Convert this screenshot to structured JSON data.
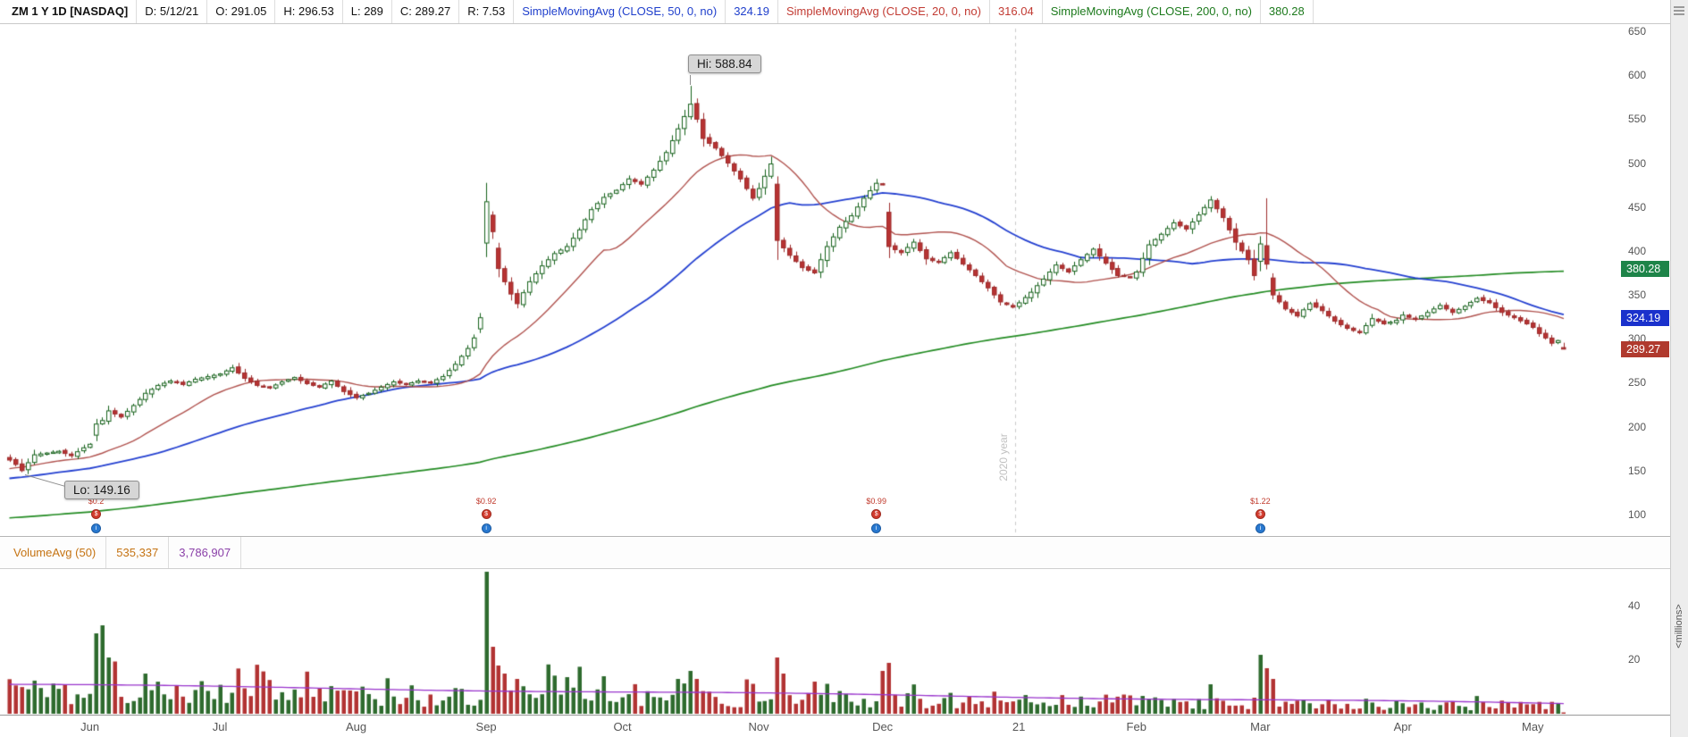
{
  "header": {
    "symbol": "ZM 1 Y 1D [NASDAQ]",
    "fields": [
      "D: 5/12/21",
      "O: 291.05",
      "H: 296.53",
      "L: 289",
      "C: 289.27",
      "R: 7.53"
    ],
    "indicators": [
      {
        "label": "SimpleMovingAvg (CLOSE, 50, 0, no)",
        "value": "324.19",
        "color": "#1f3fcc"
      },
      {
        "label": "SimpleMovingAvg (CLOSE, 20, 0, no)",
        "value": "316.04",
        "color": "#c23b33"
      },
      {
        "label": "SimpleMovingAvg (CLOSE, 200, 0, no)",
        "value": "380.28",
        "color": "#1d7a1d"
      }
    ]
  },
  "price_axis": {
    "ticks": [
      650,
      600,
      550,
      500,
      450,
      400,
      350,
      300,
      250,
      200,
      150,
      100
    ],
    "lines": [
      {
        "text": "380.28",
        "price": 380.28,
        "color": "#1e8449"
      },
      {
        "text": "324.19",
        "price": 324.19,
        "color": "#1a31cc"
      },
      {
        "text": "289.27",
        "price": 289.27,
        "color": "#b03a2e"
      }
    ]
  },
  "volume_header": {
    "label": "VolumeAvg (50)",
    "value1": "535,337",
    "value2": "3,786,907"
  },
  "volume_axis": {
    "ticks": [
      40,
      20
    ],
    "unit": "<millions>"
  },
  "annotations": {
    "hi": "Hi: 588.84",
    "lo": "Lo: 149.16",
    "year_line": "2020 year"
  },
  "events": [
    {
      "day": 14,
      "eps": "$0.2"
    },
    {
      "day": 77,
      "eps": "$0.92"
    },
    {
      "day": 140,
      "eps": "$0.99"
    },
    {
      "day": 202,
      "eps": "$1.22"
    }
  ],
  "chart_data": {
    "type": "candlestick",
    "title": "ZM 1 Y 1D [NASDAQ]",
    "symbol": "ZM",
    "timeframe": "1 Y 1D",
    "exchange": "NASDAQ",
    "last_bar": {
      "date": "5/12/21",
      "open": 291.05,
      "high": 296.53,
      "low": 289,
      "close": 289.27,
      "range": 7.53
    },
    "period_high": 588.84,
    "period_low": 149.16,
    "price_axis_range": [
      100,
      650
    ],
    "overlays": [
      {
        "name": "SimpleMovingAvg 50",
        "value": 324.19,
        "color": "#2440d0"
      },
      {
        "name": "SimpleMovingAvg 20",
        "value": 316.04,
        "color": "#b0524e"
      },
      {
        "name": "SimpleMovingAvg 200",
        "value": 380.28,
        "color": "#228b22"
      }
    ],
    "months": [
      {
        "label": "Jun",
        "day": 13
      },
      {
        "label": "Jul",
        "day": 34
      },
      {
        "label": "Aug",
        "day": 56
      },
      {
        "label": "Sep",
        "day": 77
      },
      {
        "label": "Oct",
        "day": 99
      },
      {
        "label": "Nov",
        "day": 121
      },
      {
        "label": "Dec",
        "day": 141
      },
      {
        "label": "21",
        "day": 163
      },
      {
        "label": "Feb",
        "day": 182
      },
      {
        "label": "Mar",
        "day": 202
      },
      {
        "label": "Apr",
        "day": 225
      },
      {
        "label": "May",
        "day": 246
      }
    ],
    "close_anchors": [
      [
        0,
        163
      ],
      [
        1,
        158
      ],
      [
        2,
        151
      ],
      [
        3,
        160
      ],
      [
        4,
        169
      ],
      [
        6,
        171
      ],
      [
        8,
        173
      ],
      [
        10,
        168
      ],
      [
        12,
        177
      ],
      [
        13,
        181
      ],
      [
        14,
        204
      ],
      [
        15,
        208
      ],
      [
        16,
        219
      ],
      [
        18,
        212
      ],
      [
        20,
        225
      ],
      [
        22,
        239
      ],
      [
        24,
        248
      ],
      [
        26,
        253
      ],
      [
        28,
        249
      ],
      [
        30,
        255
      ],
      [
        32,
        258
      ],
      [
        34,
        261
      ],
      [
        36,
        268
      ],
      [
        38,
        256
      ],
      [
        40,
        248
      ],
      [
        42,
        245
      ],
      [
        44,
        252
      ],
      [
        46,
        257
      ],
      [
        48,
        250
      ],
      [
        50,
        246
      ],
      [
        52,
        253
      ],
      [
        54,
        241
      ],
      [
        56,
        234
      ],
      [
        58,
        239
      ],
      [
        60,
        246
      ],
      [
        62,
        252
      ],
      [
        64,
        249
      ],
      [
        66,
        253
      ],
      [
        68,
        251
      ],
      [
        70,
        258
      ],
      [
        72,
        272
      ],
      [
        74,
        290
      ],
      [
        75,
        302
      ],
      [
        76,
        325
      ],
      [
        77,
        457
      ],
      [
        78,
        423
      ],
      [
        79,
        381
      ],
      [
        80,
        366
      ],
      [
        81,
        352
      ],
      [
        82,
        341
      ],
      [
        84,
        366
      ],
      [
        86,
        384
      ],
      [
        88,
        398
      ],
      [
        90,
        406
      ],
      [
        92,
        425
      ],
      [
        94,
        448
      ],
      [
        96,
        462
      ],
      [
        98,
        470
      ],
      [
        100,
        483
      ],
      [
        102,
        477
      ],
      [
        104,
        493
      ],
      [
        106,
        513
      ],
      [
        108,
        540
      ],
      [
        110,
        568
      ],
      [
        111,
        551
      ],
      [
        112,
        529
      ],
      [
        114,
        518
      ],
      [
        116,
        501
      ],
      [
        118,
        483
      ],
      [
        120,
        461
      ],
      [
        121,
        472
      ],
      [
        122,
        486
      ],
      [
        123,
        500
      ],
      [
        124,
        413
      ],
      [
        126,
        396
      ],
      [
        128,
        382
      ],
      [
        130,
        376
      ],
      [
        132,
        406
      ],
      [
        134,
        428
      ],
      [
        136,
        441
      ],
      [
        138,
        461
      ],
      [
        140,
        478
      ],
      [
        141,
        477
      ],
      [
        142,
        406
      ],
      [
        144,
        399
      ],
      [
        146,
        411
      ],
      [
        148,
        392
      ],
      [
        150,
        388
      ],
      [
        152,
        399
      ],
      [
        154,
        386
      ],
      [
        156,
        373
      ],
      [
        158,
        359
      ],
      [
        160,
        343
      ],
      [
        162,
        337
      ],
      [
        163,
        342
      ],
      [
        165,
        354
      ],
      [
        167,
        369
      ],
      [
        169,
        385
      ],
      [
        171,
        377
      ],
      [
        173,
        391
      ],
      [
        175,
        403
      ],
      [
        177,
        387
      ],
      [
        179,
        373
      ],
      [
        181,
        371
      ],
      [
        182,
        377
      ],
      [
        184,
        408
      ],
      [
        186,
        420
      ],
      [
        188,
        433
      ],
      [
        190,
        426
      ],
      [
        192,
        442
      ],
      [
        194,
        459
      ],
      [
        196,
        439
      ],
      [
        198,
        411
      ],
      [
        200,
        391
      ],
      [
        201,
        373
      ],
      [
        202,
        409
      ],
      [
        203,
        386
      ],
      [
        204,
        351
      ],
      [
        206,
        335
      ],
      [
        208,
        327
      ],
      [
        210,
        341
      ],
      [
        212,
        333
      ],
      [
        214,
        321
      ],
      [
        216,
        313
      ],
      [
        218,
        308
      ],
      [
        220,
        324
      ],
      [
        222,
        318
      ],
      [
        224,
        322
      ],
      [
        225,
        328
      ],
      [
        227,
        323
      ],
      [
        229,
        331
      ],
      [
        231,
        339
      ],
      [
        233,
        331
      ],
      [
        235,
        338
      ],
      [
        237,
        347
      ],
      [
        239,
        342
      ],
      [
        241,
        331
      ],
      [
        243,
        325
      ],
      [
        245,
        318
      ],
      [
        246,
        314
      ],
      [
        247,
        307
      ],
      [
        248,
        302
      ],
      [
        249,
        296
      ],
      [
        250,
        299
      ],
      [
        251,
        289.27
      ]
    ],
    "prehistory_anchors": [
      [
        -200,
        63
      ],
      [
        -170,
        70
      ],
      [
        -150,
        68
      ],
      [
        -130,
        74
      ],
      [
        -110,
        80
      ],
      [
        -90,
        96
      ],
      [
        -70,
        104
      ],
      [
        -60,
        110
      ],
      [
        -50,
        118
      ],
      [
        -40,
        127
      ],
      [
        -32,
        140
      ],
      [
        -26,
        159
      ],
      [
        -22,
        131
      ],
      [
        -16,
        142
      ],
      [
        -10,
        155
      ],
      [
        -5,
        162
      ],
      [
        -1,
        163
      ]
    ],
    "special_bars": {
      "2": {
        "low": 149.16
      },
      "77": {
        "open": 410,
        "high": 478.5,
        "low": 394
      },
      "110": {
        "high": 588.84
      },
      "124": {
        "open": 477
      },
      "203": {
        "open": 407,
        "high": 461,
        "low": 380
      },
      "251": {
        "open": 291.05,
        "high": 296.53,
        "low": 289
      }
    },
    "volume": {
      "base_start": 8.8,
      "base_end": 3.3,
      "avg_start": 11.0,
      "avg_end": 3.79,
      "spikes": {
        "14": 30,
        "15": 33,
        "16": 21,
        "22": 15,
        "77": 53,
        "78": 25,
        "79": 18,
        "80": 15,
        "82": 13,
        "96": 14,
        "108": 13,
        "110": 16,
        "111": 13,
        "124": 21,
        "125": 15,
        "130": 12,
        "141": 16,
        "142": 19,
        "194": 11,
        "202": 22,
        "203": 17,
        "204": 13,
        "251": 0.5
      }
    }
  }
}
